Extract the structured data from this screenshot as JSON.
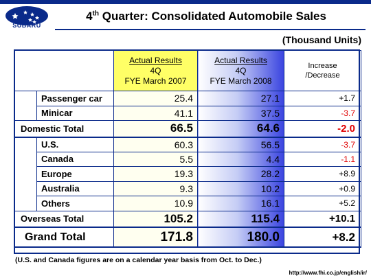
{
  "logo": {
    "word": "SUBARU"
  },
  "title": {
    "prefix": "4",
    "sup": "th",
    "rest": " Quarter: Consolidated Automobile Sales"
  },
  "units": "(Thousand Units)",
  "header": {
    "col1": {
      "line1": "Actual Results",
      "line2": "4Q",
      "line3": "FYE March 2007"
    },
    "col2": {
      "line1": "Actual Results",
      "line2": "4Q",
      "line3": "FYE March 2008"
    },
    "col3": {
      "line1": "Increase",
      "line2": "/Decrease"
    }
  },
  "domestic": {
    "rows": [
      {
        "label": "Passenger car",
        "v2007": "25.4",
        "v2008": "27.1",
        "change": "+1.7"
      },
      {
        "label": "Minicar",
        "v2007": "41.1",
        "v2008": "37.5",
        "change": "-3.7"
      }
    ],
    "total": {
      "label": "Domestic Total",
      "v2007": "66.5",
      "v2008": "64.6",
      "change": "-2.0"
    }
  },
  "overseas": {
    "rows": [
      {
        "label": "U.S.",
        "v2007": "60.3",
        "v2008": "56.5",
        "change": "-3.7"
      },
      {
        "label": "Canada",
        "v2007": "5.5",
        "v2008": "4.4",
        "change": "-1.1"
      },
      {
        "label": "Europe",
        "v2007": "19.3",
        "v2008": "28.2",
        "change": "+8.9"
      },
      {
        "label": "Australia",
        "v2007": "9.3",
        "v2008": "10.2",
        "change": "+0.9"
      },
      {
        "label": "Others",
        "v2007": "10.9",
        "v2008": "16.1",
        "change": "+5.2"
      }
    ],
    "total": {
      "label": "Overseas Total",
      "v2007": "105.2",
      "v2008": "115.4",
      "change": "+10.1"
    }
  },
  "grand": {
    "label": "Grand Total",
    "v2007": "171.8",
    "v2008": "180.0",
    "change": "+8.2"
  },
  "footnote": "(U.S. and Canada figures are on a calendar year basis from Oct. to Dec.)",
  "url": "http://www.fhi.co.jp/english/ir/",
  "colors": {
    "brand": "#0a2a8a",
    "negative": "#e00000",
    "header_yellow": "#ffff66"
  }
}
